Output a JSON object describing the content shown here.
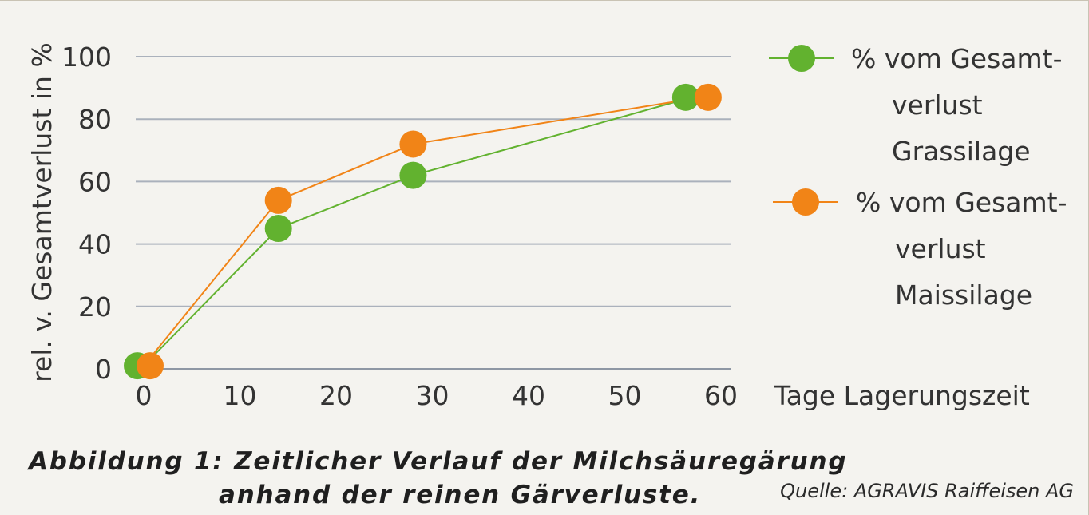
{
  "chart_data": {
    "type": "line",
    "x_label": "Tage Lagerungszeit",
    "y_label": "rel. v. Gesamtverlust in %",
    "xlim": [
      0,
      60
    ],
    "ylim": [
      0,
      100
    ],
    "x_ticks": [
      "0",
      "10",
      "20",
      "30",
      "40",
      "50",
      "60"
    ],
    "y_ticks": [
      "0",
      "20",
      "40",
      "60",
      "80",
      "100"
    ],
    "grid": "horizontal",
    "legend_position": "right",
    "series": [
      {
        "name_lines": [
          "% vom Gesamt-",
          "verlust",
          "Grassilage"
        ],
        "color": "#62b22f",
        "x": [
          0,
          14,
          28,
          57
        ],
        "y": [
          1,
          45,
          62,
          87
        ]
      },
      {
        "name_lines": [
          "% vom Gesamt-",
          "verlust",
          "Maissilage"
        ],
        "color": "#f18417",
        "x": [
          0,
          14,
          28,
          58
        ],
        "y": [
          1,
          54,
          72,
          87
        ]
      }
    ]
  },
  "caption": {
    "line1": "Abbildung 1:  Zeitlicher Verlauf der Milchsäuregärung",
    "line2": "anhand der reinen Gärverluste."
  },
  "source": "Quelle: AGRAVIS Raiffeisen AG"
}
